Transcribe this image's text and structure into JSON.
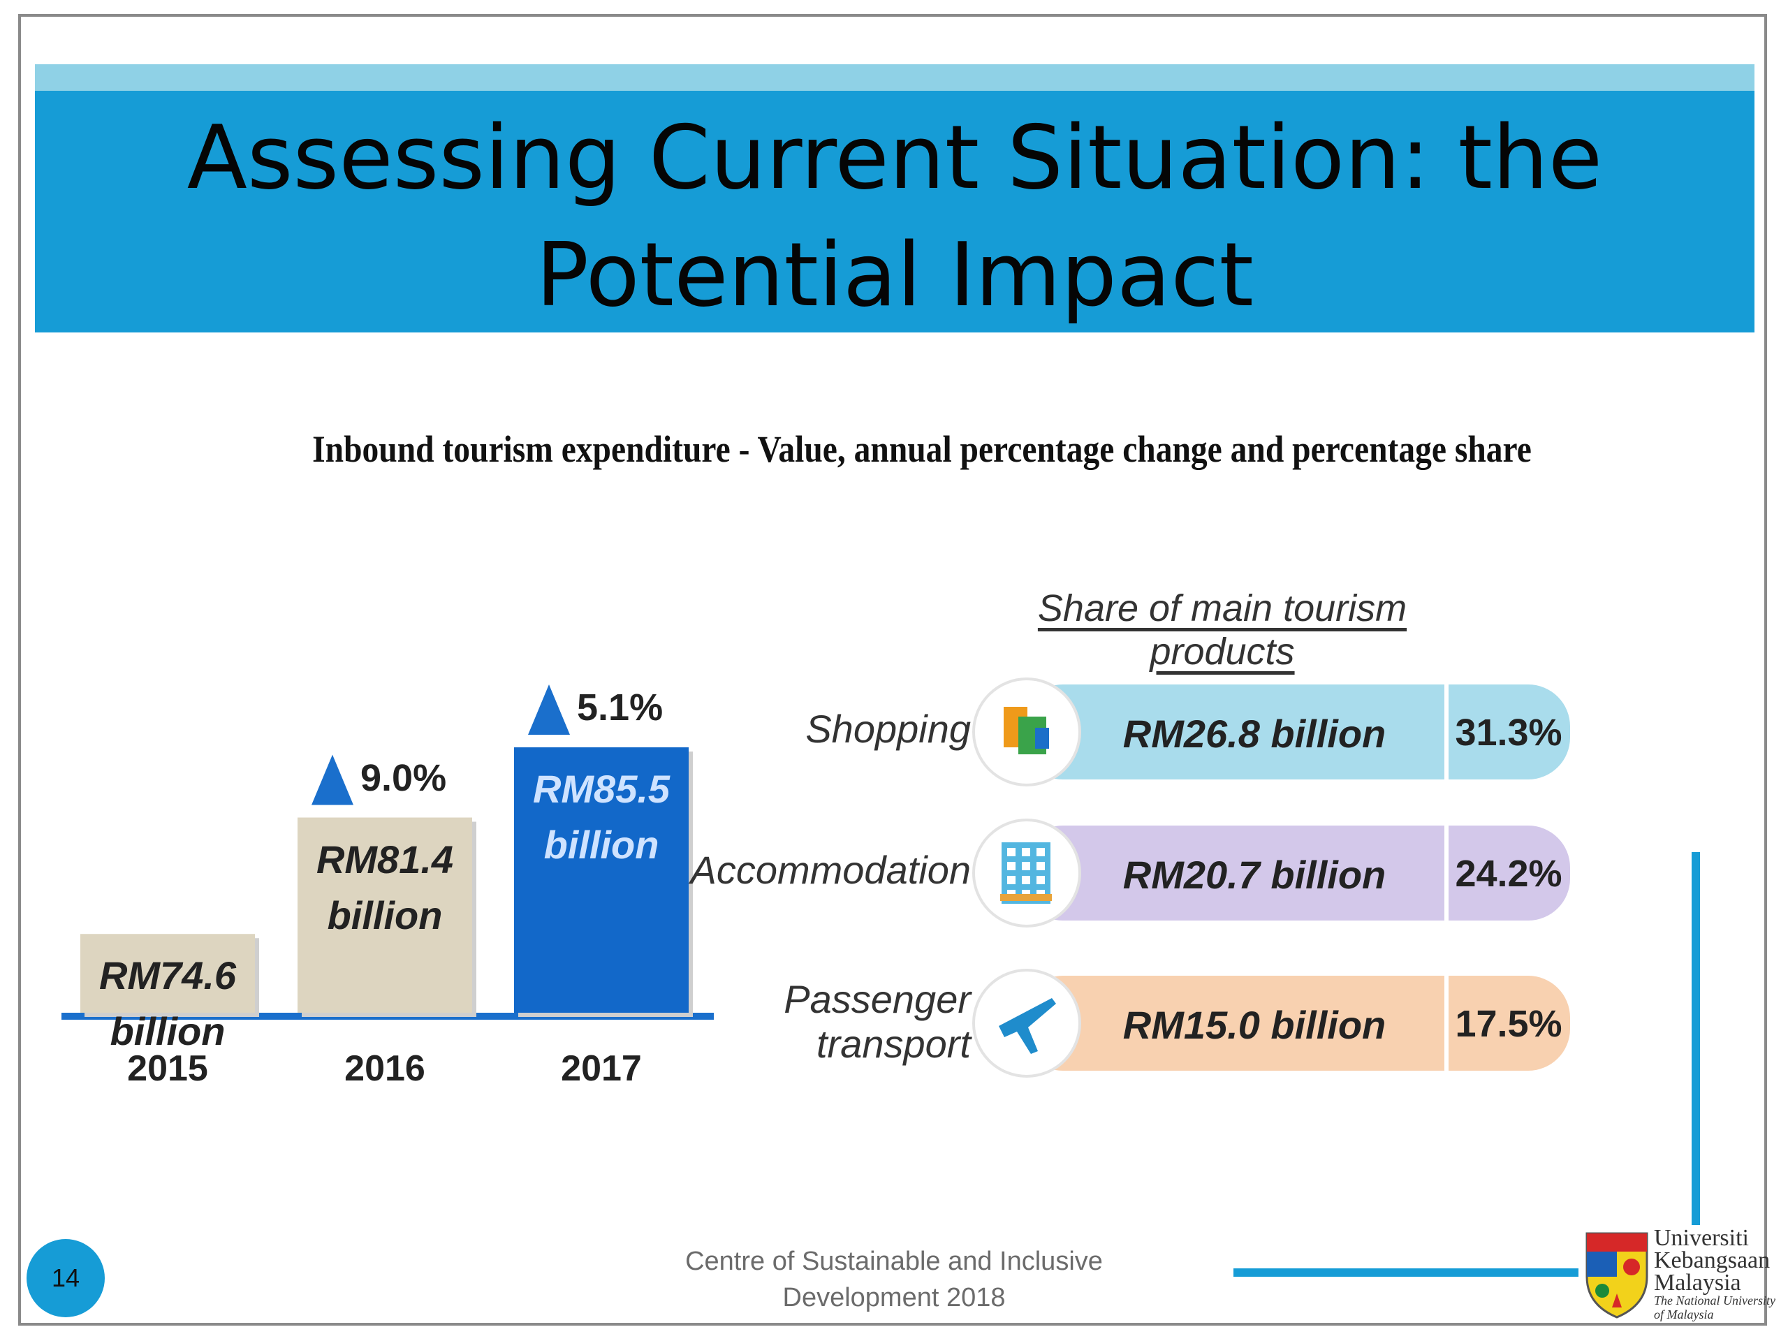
{
  "slide": {
    "title": "Assessing Current Situation: the Potential Impact",
    "page_number": "14",
    "footer_line1": "Centre of Sustainable and Inclusive",
    "footer_line2": "Development 2018"
  },
  "logo": {
    "line1": "Universiti",
    "line2": "Kebangsaan",
    "line3": "Malaysia",
    "line4": "The National University",
    "line5": "of Malaysia"
  },
  "colors": {
    "title_band": "#169cd6",
    "bar_light": "#ddd5c0",
    "bar_highlight": "#1268c9",
    "shopping": "#a9dcec",
    "accommodation": "#d3c8ea",
    "transport": "#f8d1b0",
    "triangle": "#1a6fcc"
  },
  "chart_data": [
    {
      "type": "bar",
      "title": "Inbound tourism expenditure - Value, annual percentage change and percentage share",
      "categories": [
        "2015",
        "2016",
        "2017"
      ],
      "values": [
        74.6,
        81.4,
        85.5
      ],
      "value_labels": [
        "RM74.6\nbillion",
        "RM81.4\nbillion",
        "RM85.5\nbillion"
      ],
      "annual_change": [
        "",
        "9.0%",
        "5.1%"
      ],
      "highlight_index": 2
    },
    {
      "type": "bar",
      "title": "Share of main tourism products",
      "categories": [
        "Shopping",
        "Accommodation",
        "Passenger\ntransport"
      ],
      "values": [
        26.8,
        20.7,
        15.0
      ],
      "value_labels": [
        "RM26.8 billion",
        "RM20.7 billion",
        "RM15.0 billion"
      ],
      "shares": [
        31.3,
        24.2,
        17.5
      ],
      "share_labels": [
        "31.3%",
        "24.2%",
        "17.5%"
      ],
      "icons": [
        "shopping-bags-icon",
        "hotel-icon",
        "airplane-icon"
      ]
    }
  ]
}
